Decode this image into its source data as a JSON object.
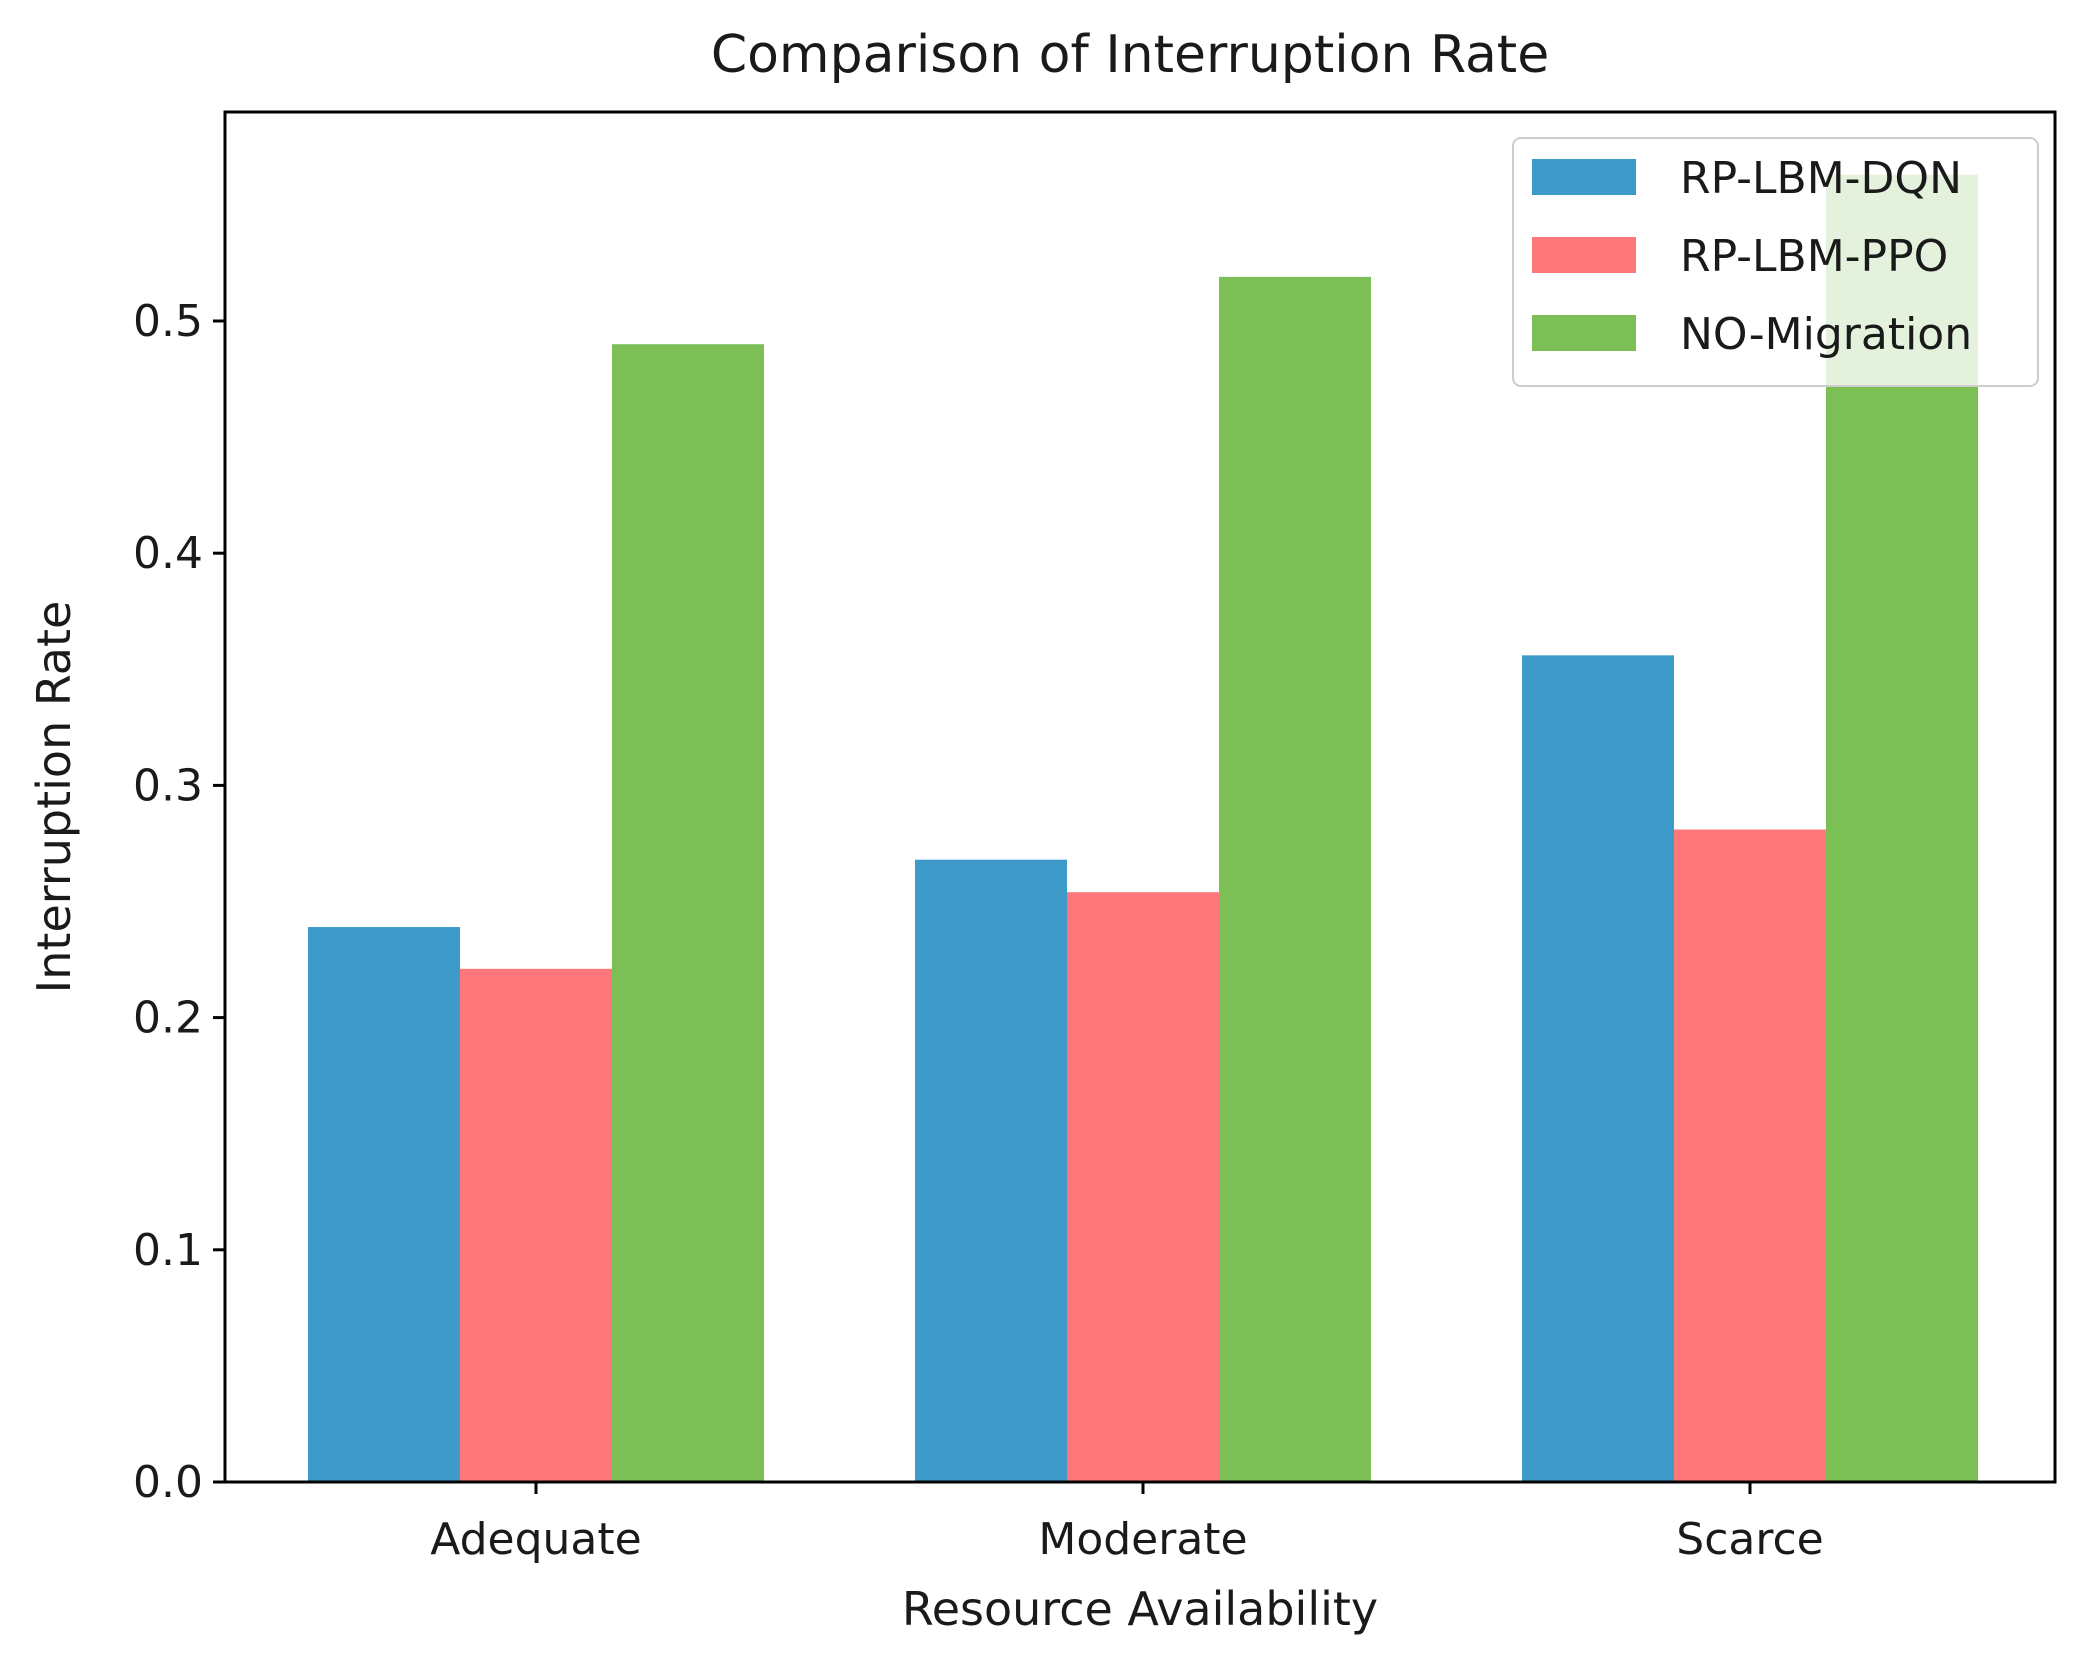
{
  "chart_data": {
    "type": "bar",
    "title": "Comparison of Interruption Rate",
    "xlabel": "Resource Availability",
    "ylabel": "Interruption Rate",
    "categories": [
      "Adequate",
      "Moderate",
      "Scarce"
    ],
    "series": [
      {
        "name": "RP-LBM-DQN",
        "color": "#3e9ac9",
        "values": [
          0.239,
          0.268,
          0.356
        ]
      },
      {
        "name": "RP-LBM-PPO",
        "color": "#fd777b",
        "values": [
          0.221,
          0.254,
          0.281
        ]
      },
      {
        "name": "NO-Migration",
        "color": "#7bbf55",
        "values": [
          0.49,
          0.519,
          0.563
        ]
      }
    ],
    "ylim": [
      0,
      0.59
    ],
    "yticks": [
      "0.0",
      "0.1",
      "0.2",
      "0.3",
      "0.4",
      "0.5"
    ],
    "legend_position": "top-right",
    "grid": false
  }
}
